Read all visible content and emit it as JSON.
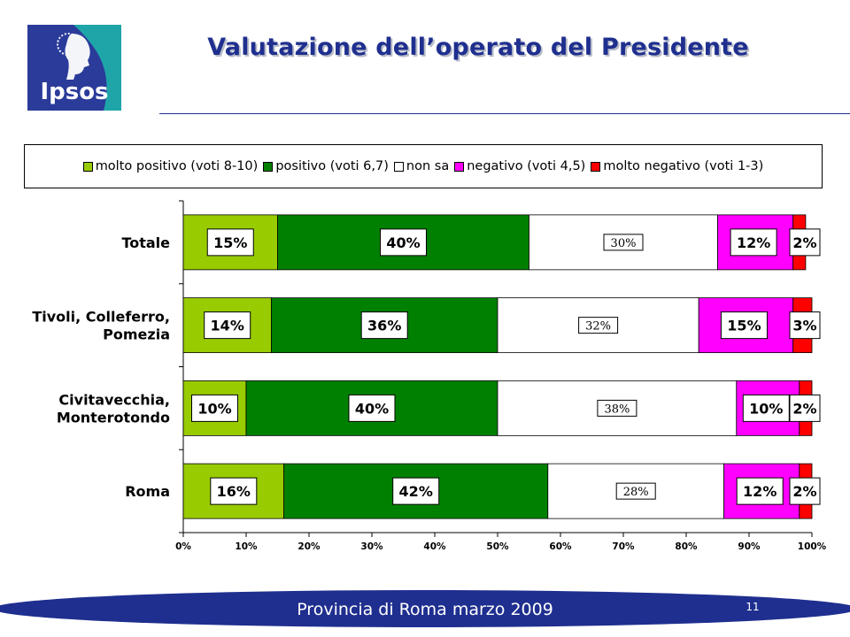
{
  "brand": {
    "logo_text": "Ipsos"
  },
  "title": "Valutazione dell’operato del Presidente",
  "footer": {
    "text": "Provincia di Roma marzo 2009",
    "page_number": "11"
  },
  "colors": {
    "molto_positivo": "#99cc00",
    "positivo": "#008000",
    "non_sa": "#ffffff",
    "negativo": "#ff00ff",
    "molto_negativo": "#ff0000",
    "title": "#1f2f8f",
    "footer_band": "#1f2f8f"
  },
  "chart_data": {
    "type": "bar",
    "orientation": "horizontal",
    "stacked": "percent",
    "categories": [
      "Totale",
      "Tivoli, Colleferro,\nPomezia",
      "Civitavecchia,\nMonterotondo",
      "Roma"
    ],
    "series": [
      {
        "name": "molto positivo (voti 8-10)",
        "color": "#99cc00",
        "values": [
          15,
          14,
          10,
          16
        ],
        "labels": [
          "15%",
          "14%",
          "10%",
          "16%"
        ]
      },
      {
        "name": "positivo (voti 6,7)",
        "color": "#008000",
        "values": [
          40,
          36,
          40,
          42
        ],
        "labels": [
          "40%",
          "36%",
          "40%",
          "42%"
        ]
      },
      {
        "name": "non sa",
        "color": "#ffffff",
        "values": [
          30,
          32,
          38,
          28
        ],
        "labels": [
          "30%",
          "32%",
          "38%",
          "28%"
        ]
      },
      {
        "name": "negativo (voti 4,5)",
        "color": "#ff00ff",
        "values": [
          12,
          15,
          10,
          12
        ],
        "labels": [
          "12%",
          "15%",
          "10%",
          "12%"
        ]
      },
      {
        "name": "molto negativo (voti 1-3)",
        "color": "#ff0000",
        "values": [
          2,
          3,
          2,
          2
        ],
        "labels": [
          "2%",
          "3%",
          "2%",
          "2%"
        ]
      }
    ],
    "xlim": [
      0,
      100
    ],
    "x_ticks": [
      "0%",
      "10%",
      "20%",
      "30%",
      "40%",
      "50%",
      "60%",
      "70%",
      "80%",
      "90%",
      "100%"
    ],
    "legend_position": "top",
    "grid": false
  }
}
